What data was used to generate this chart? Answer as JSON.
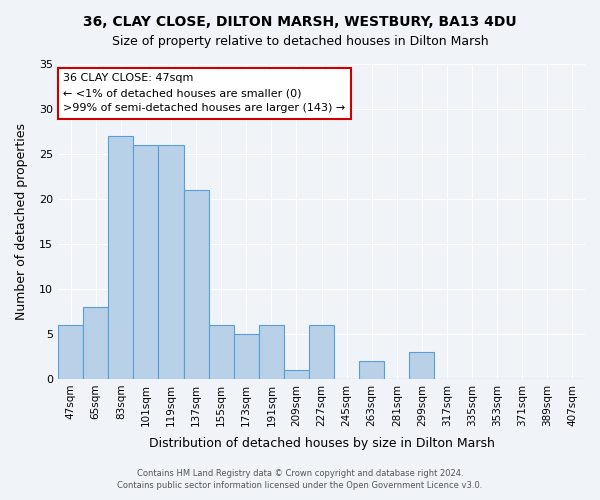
{
  "title1": "36, CLAY CLOSE, DILTON MARSH, WESTBURY, BA13 4DU",
  "title2": "Size of property relative to detached houses in Dilton Marsh",
  "xlabel": "Distribution of detached houses by size in Dilton Marsh",
  "ylabel": "Number of detached properties",
  "bar_labels": [
    "47sqm",
    "65sqm",
    "83sqm",
    "101sqm",
    "119sqm",
    "137sqm",
    "155sqm",
    "173sqm",
    "191sqm",
    "209sqm",
    "227sqm",
    "245sqm",
    "263sqm",
    "281sqm",
    "299sqm",
    "317sqm",
    "335sqm",
    "353sqm",
    "371sqm",
    "389sqm",
    "407sqm"
  ],
  "bar_values": [
    6,
    8,
    27,
    26,
    26,
    21,
    6,
    5,
    6,
    1,
    6,
    0,
    2,
    0,
    3,
    0,
    0,
    0,
    0,
    0,
    0
  ],
  "bar_color": "#b8d0e8",
  "bar_edge_color": "#5a9fd4",
  "ylim": [
    0,
    35
  ],
  "yticks": [
    0,
    5,
    10,
    15,
    20,
    25,
    30,
    35
  ],
  "annotation_title": "36 CLAY CLOSE: 47sqm",
  "annotation_line1": "← <1% of detached houses are smaller (0)",
  "annotation_line2": ">99% of semi-detached houses are larger (143) →",
  "annotation_box_color": "#ffffff",
  "annotation_box_edge": "#cc0000",
  "footer1": "Contains HM Land Registry data © Crown copyright and database right 2024.",
  "footer2": "Contains public sector information licensed under the Open Government Licence v3.0.",
  "background_color": "#f0f4f8"
}
